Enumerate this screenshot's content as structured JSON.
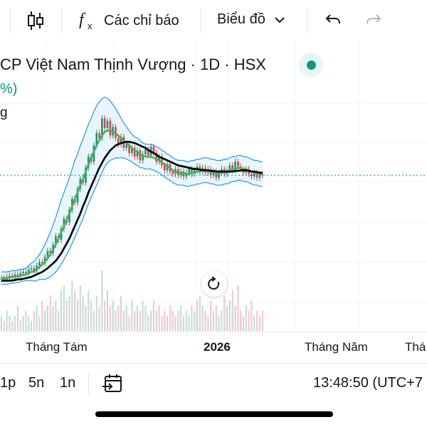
{
  "toolbar": {
    "indicators_label": "Các chỉ báo",
    "chart_menu_label": "Biểu đồ"
  },
  "header": {
    "title": "CP Việt Nam Thịnh Vượng · 1D · HSX",
    "change_fragment": "%)",
    "label_fragment": "g"
  },
  "colors": {
    "up": "#089981",
    "down": "#f23645",
    "sma_fast": "#4caf50",
    "sma_slow": "#000000",
    "bands": "#2196f3",
    "band_fill": "#e3f2fd"
  },
  "chart_data": {
    "type": "candlestick",
    "x_labels": [
      "Tháng Tám",
      "2026",
      "Tháng Năm",
      "Thá"
    ],
    "bars": [
      [
        8.0,
        8.1
      ],
      [
        8.1,
        8.0
      ],
      [
        8.0,
        8.2
      ],
      [
        8.2,
        8.3
      ],
      [
        8.3,
        8.2
      ],
      [
        8.2,
        8.4
      ],
      [
        8.4,
        8.3
      ],
      [
        8.3,
        8.5
      ],
      [
        8.5,
        8.6
      ],
      [
        8.6,
        8.5
      ],
      [
        8.5,
        8.8
      ],
      [
        8.8,
        8.9
      ],
      [
        8.9,
        8.7
      ],
      [
        8.7,
        9.1
      ],
      [
        9.1,
        9.4
      ],
      [
        9.4,
        9.3
      ],
      [
        9.3,
        9.8
      ],
      [
        9.8,
        10.3
      ],
      [
        10.3,
        10.1
      ],
      [
        10.1,
        10.8
      ],
      [
        10.8,
        11.5
      ],
      [
        11.5,
        11.2
      ],
      [
        11.2,
        12.1
      ],
      [
        12.1,
        12.9
      ],
      [
        12.9,
        12.6
      ],
      [
        12.6,
        13.6
      ],
      [
        13.6,
        14.5
      ],
      [
        14.5,
        14.2
      ],
      [
        14.2,
        15.3
      ],
      [
        15.3,
        16.1
      ],
      [
        16.1,
        15.8
      ],
      [
        15.8,
        17.0
      ],
      [
        17.0,
        17.9
      ],
      [
        17.9,
        17.5
      ],
      [
        17.5,
        18.8
      ],
      [
        18.8,
        19.8
      ],
      [
        19.8,
        19.4
      ],
      [
        19.4,
        21.0
      ],
      [
        21.0,
        20.2
      ],
      [
        20.2,
        20.8
      ],
      [
        20.8,
        19.6
      ],
      [
        19.6,
        20.3
      ],
      [
        20.3,
        19.4
      ],
      [
        19.4,
        18.9
      ],
      [
        18.9,
        19.5
      ],
      [
        19.5,
        18.6
      ],
      [
        18.6,
        18.9
      ],
      [
        18.9,
        18.2
      ],
      [
        18.2,
        18.6
      ],
      [
        18.6,
        17.9
      ],
      [
        17.9,
        18.4
      ],
      [
        18.4,
        17.6
      ],
      [
        17.6,
        18.1
      ],
      [
        18.1,
        18.5
      ],
      [
        18.5,
        18.0
      ],
      [
        18.0,
        18.7
      ],
      [
        18.7,
        18.2
      ],
      [
        18.2,
        17.5
      ],
      [
        17.5,
        17.9
      ],
      [
        17.9,
        17.2
      ],
      [
        17.2,
        16.8
      ],
      [
        16.8,
        17.3
      ],
      [
        17.3,
        16.7
      ],
      [
        16.7,
        16.5
      ],
      [
        16.5,
        16.9
      ],
      [
        16.9,
        16.4
      ],
      [
        16.4,
        16.7
      ],
      [
        16.7,
        16.3
      ],
      [
        16.3,
        16.6
      ],
      [
        16.6,
        16.9
      ],
      [
        16.9,
        16.5
      ],
      [
        16.5,
        16.8
      ],
      [
        16.8,
        17.1
      ],
      [
        17.1,
        16.7
      ],
      [
        16.7,
        17.0
      ],
      [
        17.0,
        16.6
      ],
      [
        16.6,
        16.9
      ],
      [
        16.9,
        16.4
      ],
      [
        16.4,
        16.7
      ],
      [
        16.7,
        16.2
      ],
      [
        16.2,
        16.6
      ],
      [
        16.6,
        16.9
      ],
      [
        16.9,
        16.5
      ],
      [
        16.5,
        16.8
      ],
      [
        16.8,
        17.2
      ],
      [
        17.2,
        16.8
      ],
      [
        16.8,
        17.5
      ],
      [
        17.5,
        17.1
      ],
      [
        17.1,
        16.9
      ],
      [
        16.9,
        16.6
      ],
      [
        16.6,
        16.9
      ],
      [
        16.9,
        16.5
      ],
      [
        16.5,
        16.3
      ],
      [
        16.3,
        16.6
      ],
      [
        16.6,
        16.2
      ],
      [
        16.2,
        16.5
      ],
      [
        16.5,
        16.4
      ]
    ],
    "volume": [
      3,
      2,
      4,
      3,
      2,
      3,
      5,
      2,
      3,
      4,
      3,
      2,
      4,
      5,
      3,
      6,
      4,
      5,
      7,
      5,
      6,
      4,
      8,
      9,
      6,
      7,
      10,
      8,
      6,
      9,
      7,
      5,
      8,
      6,
      4,
      7,
      5,
      12,
      6,
      8,
      5,
      6,
      4,
      5,
      7,
      4,
      5,
      3,
      6,
      4,
      5,
      4,
      6,
      5,
      3,
      4,
      6,
      4,
      5,
      3,
      4,
      3,
      5,
      4,
      3,
      4,
      5,
      3,
      4,
      3,
      5,
      4,
      6,
      7,
      5,
      4,
      3,
      6,
      4,
      5,
      3,
      4,
      7,
      5,
      6,
      8,
      5,
      9,
      4,
      3,
      5,
      4,
      6,
      3,
      4,
      3,
      4
    ],
    "sma_fast": [
      8.1,
      8.1,
      8.1,
      8.15,
      8.2,
      8.2,
      8.25,
      8.3,
      8.35,
      8.4,
      8.5,
      8.6,
      8.65,
      8.8,
      9.0,
      9.2,
      9.4,
      9.7,
      10.0,
      10.4,
      10.8,
      11.3,
      11.8,
      12.3,
      12.8,
      13.3,
      13.9,
      14.5,
      15.0,
      15.6,
      16.1,
      16.7,
      17.3,
      17.8,
      18.3,
      18.8,
      19.2,
      19.6,
      19.9,
      20.0,
      20.0,
      19.9,
      19.8,
      19.6,
      19.4,
      19.2,
      19.0,
      18.8,
      18.6,
      18.4,
      18.3,
      18.1,
      18.0,
      17.9,
      17.9,
      17.9,
      17.8,
      17.7,
      17.6,
      17.4,
      17.3,
      17.1,
      17.0,
      16.8,
      16.7,
      16.6,
      16.6,
      16.6,
      16.5,
      16.5,
      16.6,
      16.6,
      16.7,
      16.7,
      16.8,
      16.8,
      16.8,
      16.7,
      16.7,
      16.6,
      16.6,
      16.6,
      16.7,
      16.7,
      16.8,
      16.9,
      16.9,
      17.0,
      17.0,
      16.9,
      16.9,
      16.8,
      16.7,
      16.6,
      16.6,
      16.5,
      16.5
    ],
    "sma_slow": [
      7.9,
      7.9,
      7.9,
      7.9,
      7.9,
      7.95,
      8.0,
      8.0,
      8.05,
      8.1,
      8.15,
      8.2,
      8.3,
      8.4,
      8.5,
      8.6,
      8.75,
      8.9,
      9.1,
      9.3,
      9.5,
      9.8,
      10.1,
      10.5,
      10.9,
      11.3,
      11.8,
      12.3,
      12.8,
      13.3,
      13.9,
      14.4,
      15.0,
      15.5,
      16.0,
      16.5,
      17.0,
      17.4,
      17.8,
      18.1,
      18.4,
      18.6,
      18.8,
      18.9,
      19.0,
      19.05,
      19.1,
      19.1,
      19.05,
      19.0,
      18.9,
      18.8,
      18.7,
      18.6,
      18.45,
      18.3,
      18.2,
      18.05,
      17.9,
      17.8,
      17.7,
      17.6,
      17.5,
      17.4,
      17.3,
      17.2,
      17.15,
      17.1,
      17.05,
      17.0,
      16.95,
      16.9,
      16.9,
      16.85,
      16.8,
      16.8,
      16.8,
      16.75,
      16.75,
      16.7,
      16.7,
      16.7,
      16.7,
      16.7,
      16.7,
      16.7,
      16.75,
      16.75,
      16.8,
      16.8,
      16.8,
      16.75,
      16.7,
      16.7,
      16.65,
      16.6,
      16.6
    ],
    "band_width": [
      0.5,
      0.5,
      0.5,
      0.5,
      0.5,
      0.5,
      0.5,
      0.5,
      0.5,
      0.5,
      0.6,
      0.7,
      0.8,
      0.9,
      1.0,
      1.2,
      1.4,
      1.6,
      1.8,
      2.0,
      2.2,
      2.4,
      2.6,
      2.7,
      2.8,
      2.9,
      3.0,
      3.1,
      3.1,
      3.2,
      3.2,
      3.2,
      3.2,
      3.2,
      3.2,
      3.2,
      3.1,
      3.0,
      2.8,
      2.6,
      2.4,
      2.2,
      2.0,
      1.8,
      1.6,
      1.4,
      1.3,
      1.2,
      1.1,
      1.1,
      1.1,
      1.1,
      1.0,
      1.0,
      1.0,
      1.0,
      1.0,
      1.0,
      1.0,
      1.0,
      1.0,
      1.0,
      1.0,
      1.0,
      1.0,
      1.0,
      1.0,
      1.0,
      1.0,
      1.0,
      1.0,
      1.0,
      1.0,
      1.0,
      1.0,
      1.0,
      1.0,
      1.0,
      1.0,
      1.0,
      1.0,
      1.0,
      1.0,
      1.0,
      1.0,
      1.0,
      1.0,
      1.0,
      1.0,
      1.0,
      1.0,
      1.0,
      1.0,
      1.0,
      1.0,
      1.0,
      1.0
    ],
    "last_price_line": 16.4,
    "ylim": [
      7.0,
      22.5
    ],
    "grid": true
  },
  "bottombar": {
    "interval_1": "1p",
    "interval_2": "5n",
    "interval_3": "1n",
    "clock": "13:48:50 (UTC+7"
  }
}
